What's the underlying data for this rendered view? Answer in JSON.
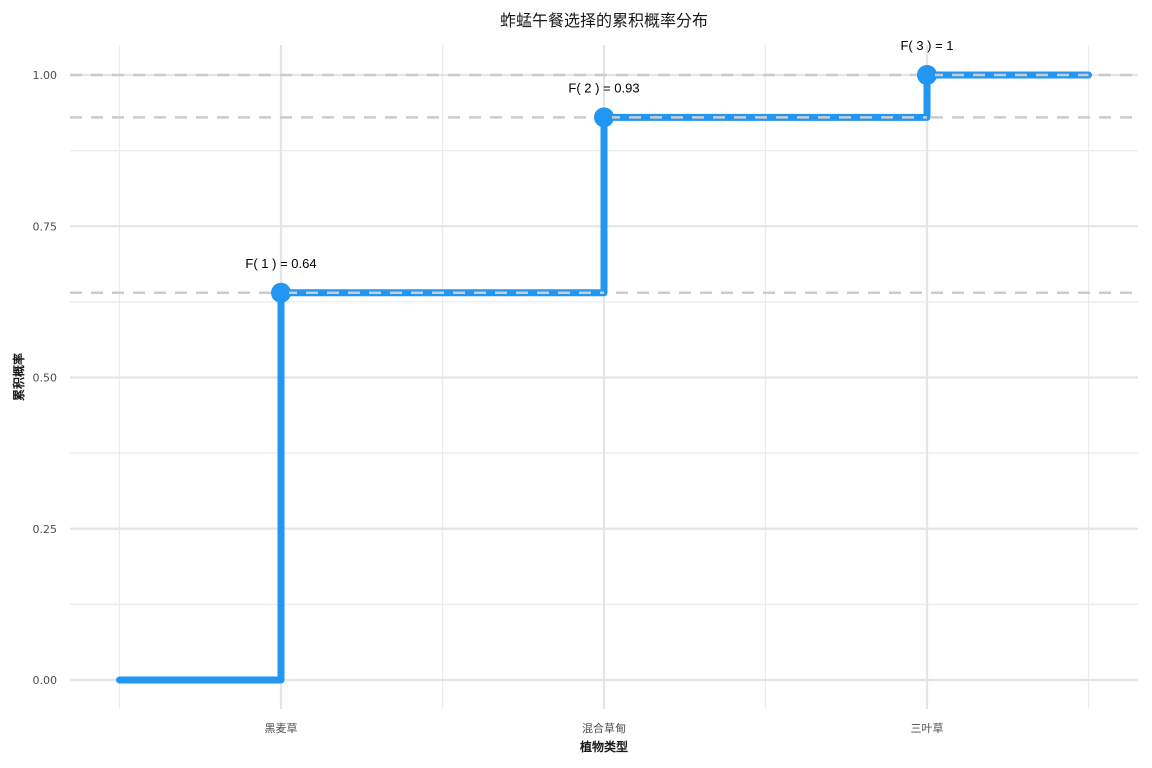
{
  "chart_data": {
    "type": "line",
    "subtype": "step-cdf",
    "title": "蚱蜢午餐选择的累积概率分布",
    "xlabel": "植物类型",
    "ylabel": "累积概率",
    "categories": [
      "黑麦草",
      "混合草甸",
      "三叶草"
    ],
    "x_ticks": [
      "黑麦草",
      "混合草甸",
      "三叶草"
    ],
    "x_numeric": [
      1,
      2,
      3
    ],
    "xlim": [
      0.5,
      3.5
    ],
    "y_ticks": [
      "0.00",
      "0.25",
      "0.50",
      "0.75",
      "1.00"
    ],
    "y_tick_values": [
      0,
      0.25,
      0.5,
      0.75,
      1.0
    ],
    "ylim": [
      -0.05,
      1.05
    ],
    "series": [
      {
        "step_points": [
          [
            0.5,
            0
          ],
          [
            1,
            0
          ],
          [
            1,
            0.64
          ],
          [
            2,
            0.64
          ],
          [
            2,
            0.93
          ],
          [
            3,
            0.93
          ],
          [
            3,
            1.0
          ],
          [
            3.5,
            1.0
          ]
        ],
        "values": [
          0.64,
          0.93,
          1.0
        ],
        "color": "#2196F3"
      }
    ],
    "reference_lines_y": [
      0.64,
      0.93,
      1.0
    ],
    "annotations": [
      "F( 1 ) = 0.64",
      "F( 2 ) = 0.93",
      "F( 3 ) = 1"
    ],
    "grid": true,
    "legend": "none"
  }
}
